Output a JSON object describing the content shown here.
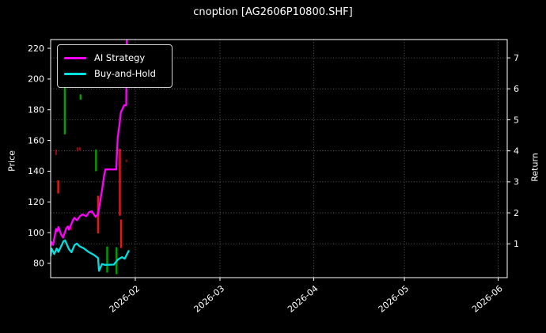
{
  "title": "cnoption [AG2606P10800.SHF]",
  "legend": {
    "items": [
      {
        "label": "AI Strategy",
        "color": "#ff00ff"
      },
      {
        "label": "Buy-and-Hold",
        "color": "#00e0e0"
      }
    ]
  },
  "chart_data": {
    "type": "line",
    "overlay": "candlestick",
    "title": "cnoption [AG2606P10800.SHF]",
    "x_axis": {
      "unit": "days since 2026-01-04",
      "min": 0,
      "max": 151,
      "ticks": [
        {
          "t": 28,
          "label": "2026-02"
        },
        {
          "t": 56,
          "label": "2026-03"
        },
        {
          "t": 87,
          "label": "2026-04"
        },
        {
          "t": 117,
          "label": "2026-05"
        },
        {
          "t": 148,
          "label": "2026-06"
        }
      ]
    },
    "left_axis": {
      "label": "Price",
      "min": 70.7,
      "max": 225.7,
      "ticks": [
        80,
        100,
        120,
        140,
        160,
        180,
        200,
        220
      ]
    },
    "right_axis": {
      "label": "Return",
      "min": -0.09,
      "max": 7.59,
      "ticks": [
        1,
        2,
        3,
        4,
        5,
        6,
        7
      ]
    },
    "grid": {
      "horizontal": "return-ticks",
      "vertical": "month-ticks",
      "style": "dotted"
    },
    "colors": {
      "background": "#000000",
      "text": "#ffffff",
      "up": "#00a000",
      "down": "#f01414",
      "grid": "#ffffff",
      "spine": "#ffffff"
    },
    "series": [
      {
        "name": "AI Strategy",
        "axis": "return",
        "color": "#ff00ff",
        "points": [
          [
            0,
            0.93
          ],
          [
            0.3,
            1.05
          ],
          [
            0.8,
            0.97
          ],
          [
            1.8,
            1.48
          ],
          [
            2.2,
            1.41
          ],
          [
            2.6,
            1.54
          ],
          [
            3.5,
            1.29
          ],
          [
            4.1,
            1.2
          ],
          [
            5.2,
            1.51
          ],
          [
            5.7,
            1.56
          ],
          [
            6.1,
            1.46
          ],
          [
            7.5,
            1.79
          ],
          [
            7.9,
            1.84
          ],
          [
            8.7,
            1.76
          ],
          [
            9.7,
            1.89
          ],
          [
            10.5,
            1.95
          ],
          [
            11.8,
            1.89
          ],
          [
            12.7,
            2.02
          ],
          [
            13.6,
            2.05
          ],
          [
            14.9,
            1.87
          ],
          [
            15.7,
            1.97
          ],
          [
            17.0,
            2.74
          ],
          [
            17.7,
            3.2
          ],
          [
            18.1,
            3.4
          ],
          [
            21.7,
            3.4
          ],
          [
            22.2,
            4.45
          ],
          [
            22.8,
            4.86
          ],
          [
            23.2,
            5.24
          ],
          [
            24.3,
            5.47
          ],
          [
            25.0,
            5.47
          ],
          [
            25.2,
            7.62
          ],
          [
            25.6,
            6.35
          ],
          [
            27.0,
            6.3
          ]
        ]
      },
      {
        "name": "Buy-and-Hold",
        "axis": "return",
        "color": "#00e0e0",
        "points": [
          [
            0,
            0.62
          ],
          [
            0.3,
            0.85
          ],
          [
            1.2,
            0.67
          ],
          [
            2.0,
            0.85
          ],
          [
            2.6,
            0.74
          ],
          [
            4.3,
            1.09
          ],
          [
            4.8,
            1.11
          ],
          [
            6.1,
            0.82
          ],
          [
            6.9,
            0.73
          ],
          [
            7.9,
            0.96
          ],
          [
            8.7,
            1.01
          ],
          [
            9.6,
            0.92
          ],
          [
            10.9,
            0.86
          ],
          [
            12.7,
            0.73
          ],
          [
            14.4,
            0.64
          ],
          [
            15.7,
            0.54
          ],
          [
            16.0,
            0.13
          ],
          [
            17.0,
            0.35
          ],
          [
            18.0,
            0.32
          ],
          [
            20.9,
            0.33
          ],
          [
            22.2,
            0.49
          ],
          [
            23.6,
            0.57
          ],
          [
            24.5,
            0.52
          ],
          [
            25.8,
            0.77
          ]
        ]
      }
    ],
    "candles": [
      {
        "t": 1.8,
        "low": 150.5,
        "high": 154.0,
        "dir": "down",
        "faint": true
      },
      {
        "t": 2.5,
        "low": 125.5,
        "high": 134.0,
        "dir": "down",
        "faint": false
      },
      {
        "t": 4.7,
        "low": 164.0,
        "high": 198.5,
        "dir": "up",
        "faint": false
      },
      {
        "t": 6.8,
        "low": 101.5,
        "high": 103.5,
        "dir": "down",
        "faint": true
      },
      {
        "t": 8.9,
        "low": 153.0,
        "high": 155.5,
        "dir": "down",
        "faint": true
      },
      {
        "t": 9.7,
        "low": 153.5,
        "high": 155.5,
        "dir": "down",
        "faint": true
      },
      {
        "t": 9.9,
        "low": 186.5,
        "high": 190.0,
        "dir": "up",
        "faint": false
      },
      {
        "t": 10.5,
        "low": 194.5,
        "high": 197.0,
        "dir": "down",
        "faint": true
      },
      {
        "t": 15.0,
        "low": 140.0,
        "high": 154.0,
        "dir": "up",
        "faint": false
      },
      {
        "t": 15.7,
        "low": 99.5,
        "high": 124.0,
        "dir": "down",
        "faint": false
      },
      {
        "t": 18.7,
        "low": 74.0,
        "high": 91.0,
        "dir": "up",
        "faint": false
      },
      {
        "t": 21.8,
        "low": 73.0,
        "high": 90.5,
        "dir": "up",
        "faint": false
      },
      {
        "t": 22.9,
        "low": 111.0,
        "high": 154.5,
        "dir": "down",
        "faint": false
      },
      {
        "t": 23.3,
        "low": 90.0,
        "high": 108.5,
        "dir": "down",
        "faint": false
      },
      {
        "t": 25.1,
        "low": 146.0,
        "high": 147.5,
        "dir": "down",
        "faint": true
      }
    ]
  }
}
